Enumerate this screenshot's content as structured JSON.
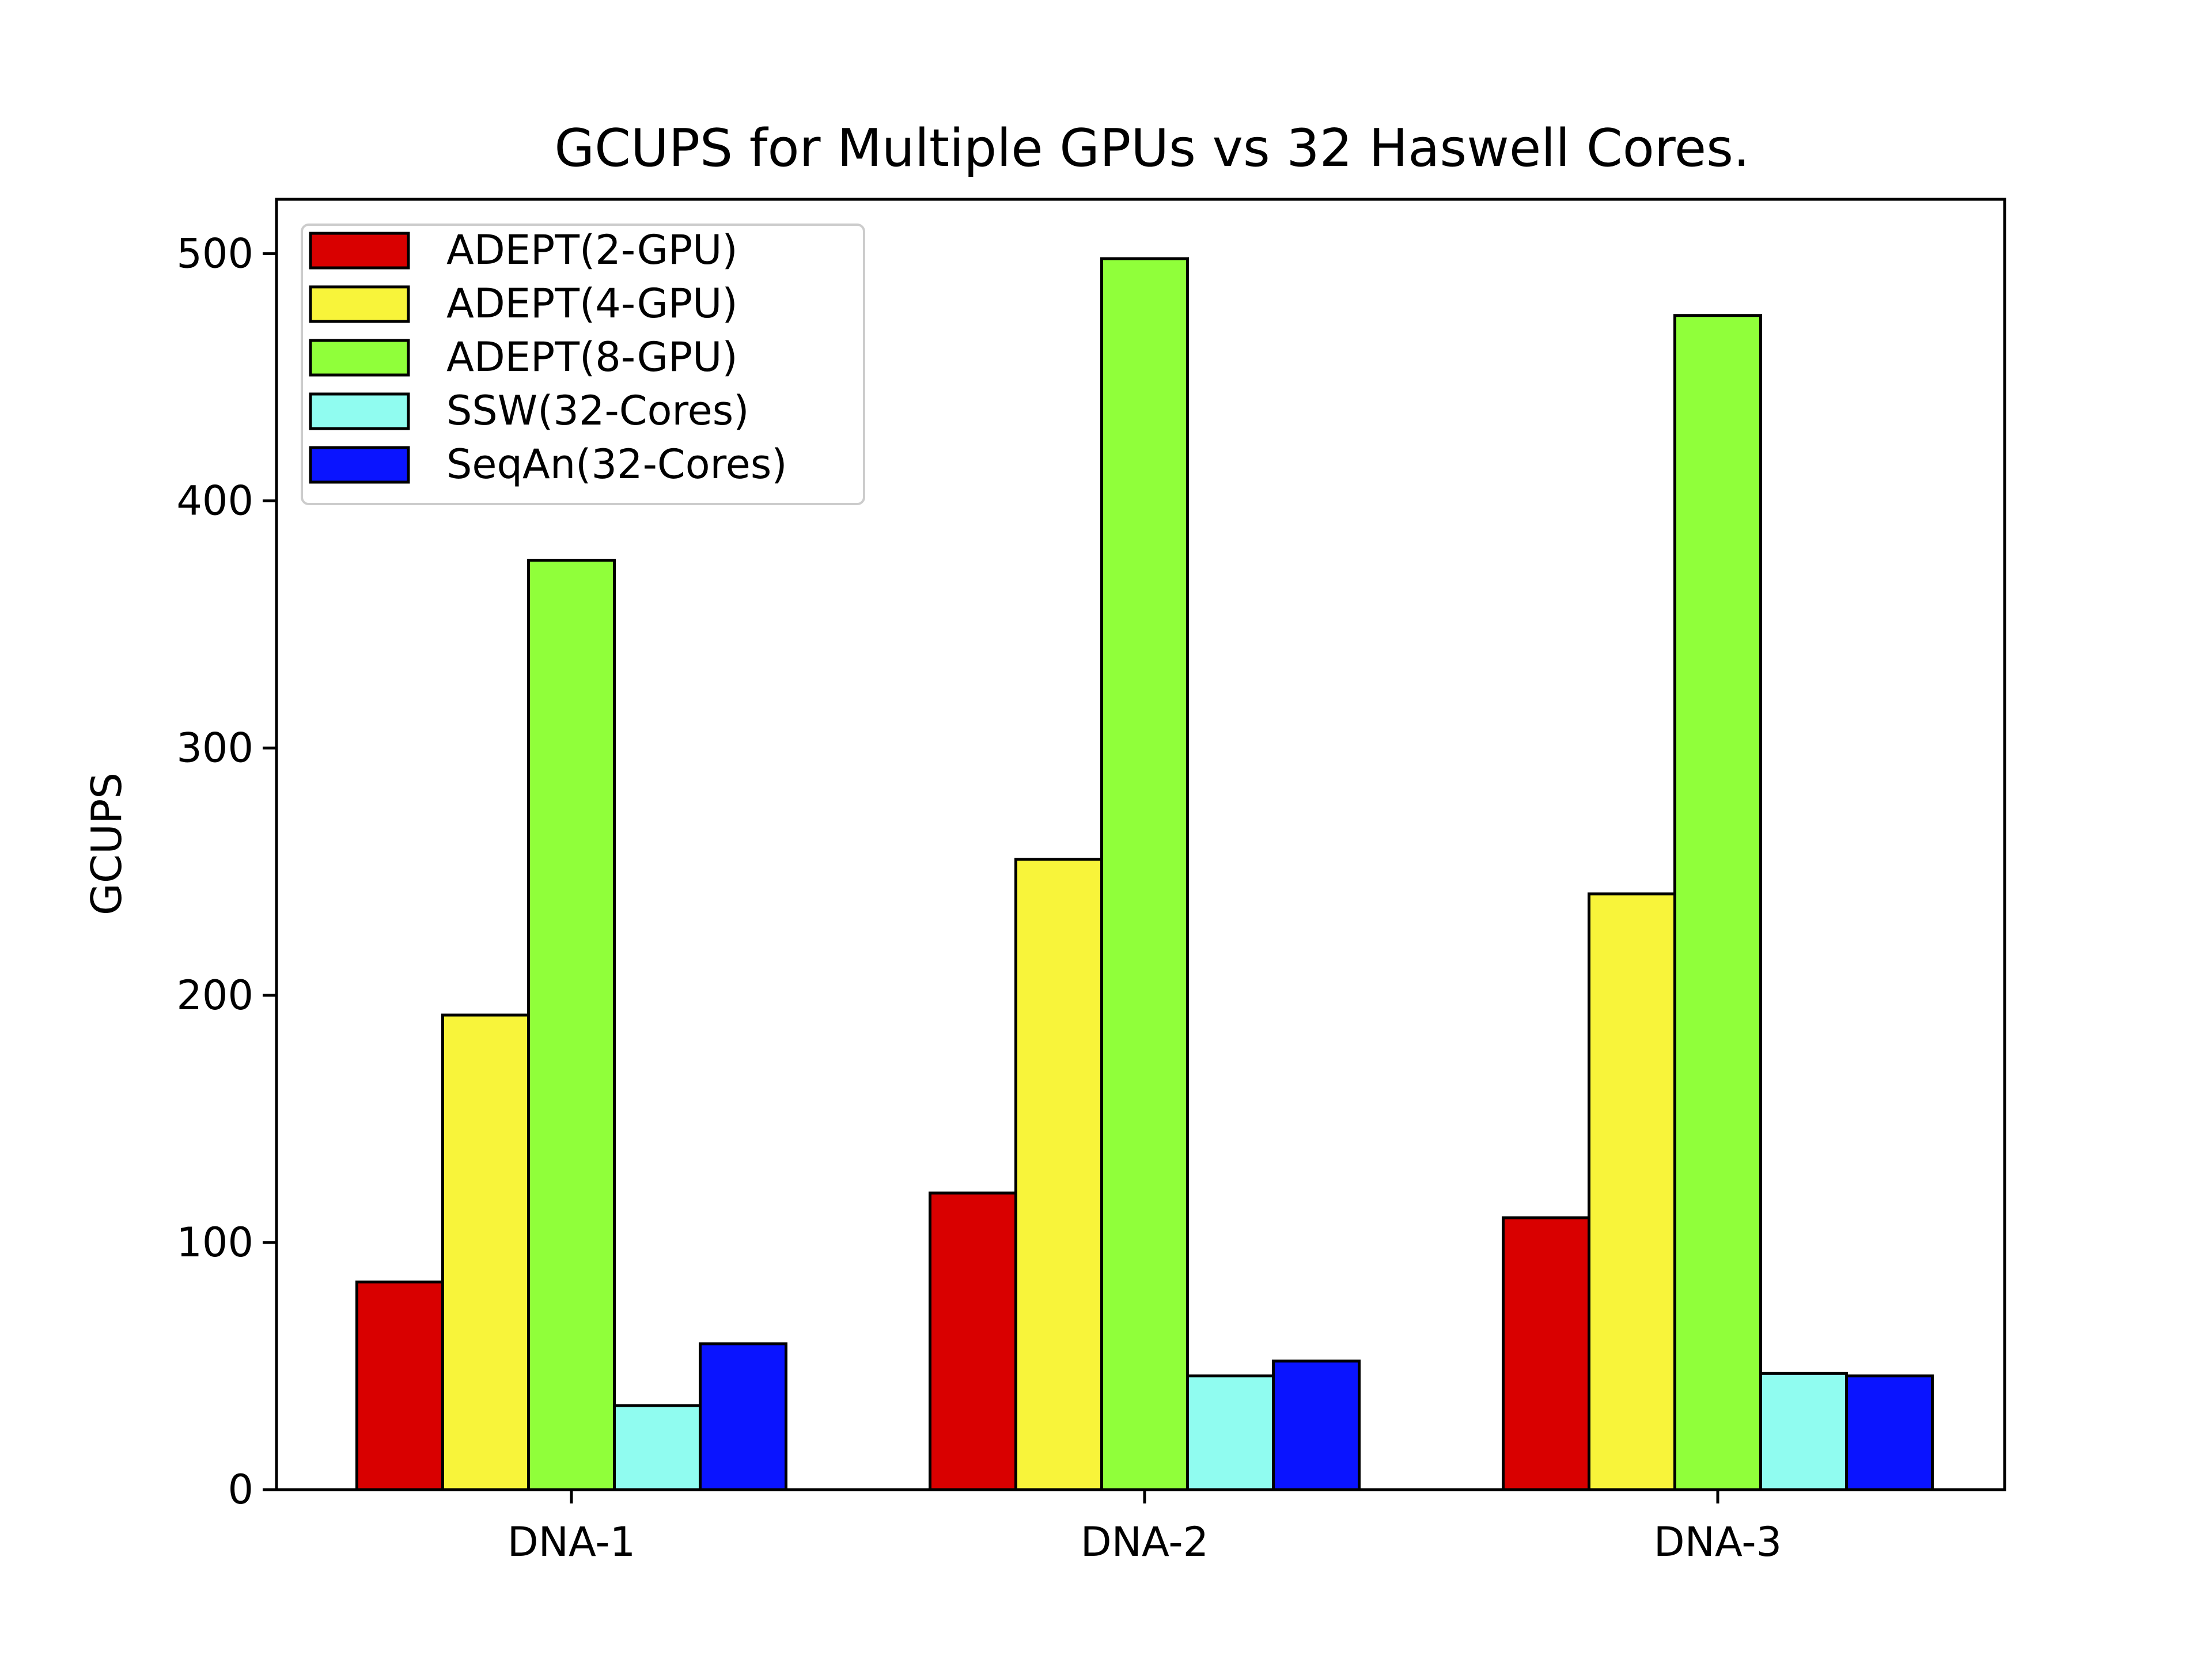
{
  "chart_data": {
    "type": "bar",
    "title": "GCUPS for Multiple GPUs vs 32 Haswell Cores.",
    "xlabel": "",
    "ylabel": "GCUPS",
    "categories": [
      "DNA-1",
      "DNA-2",
      "DNA-3"
    ],
    "ylim": [
      0,
      522
    ],
    "yticks": [
      0,
      100,
      200,
      300,
      400,
      500
    ],
    "grid": false,
    "legend_position": "top-left",
    "series": [
      {
        "name": "ADEPT(2-GPU)",
        "color": "#d90000",
        "values": [
          84,
          120,
          110
        ]
      },
      {
        "name": "ADEPT(4-GPU)",
        "color": "#f8f43a",
        "values": [
          192,
          255,
          241
        ]
      },
      {
        "name": "ADEPT(8-GPU)",
        "color": "#90ff3a",
        "values": [
          376,
          498,
          475
        ]
      },
      {
        "name": "SSW(32-Cores)",
        "color": "#90fcf0",
        "values": [
          34,
          46,
          47
        ]
      },
      {
        "name": "SeqAn(32-Cores)",
        "color": "#0a14ff",
        "values": [
          59,
          52,
          46
        ]
      }
    ]
  }
}
